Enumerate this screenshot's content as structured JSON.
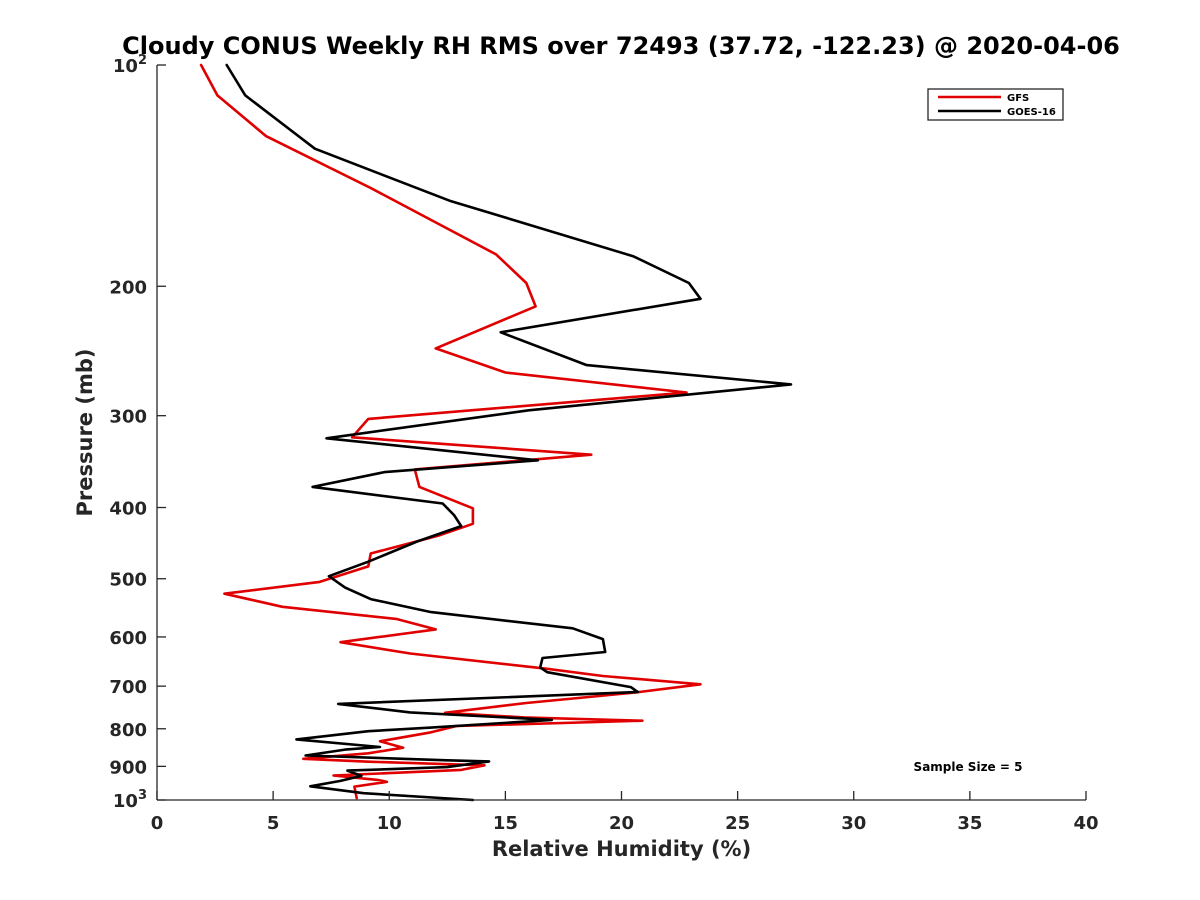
{
  "chart_data": {
    "type": "line",
    "title": "Cloudy CONUS Weekly RH RMS over 72493 (37.72, -122.23) @ 2020-04-06",
    "xlabel": "Relative Humidity (%)",
    "ylabel": "Pressure (mb)",
    "xlim": [
      0,
      40
    ],
    "ylim": [
      100,
      1000
    ],
    "yscale": "log",
    "y_reversed": true,
    "grid": false,
    "x_ticks": [
      "0",
      "5",
      "10",
      "15",
      "20",
      "25",
      "30",
      "35",
      "40"
    ],
    "y_ticks": [
      {
        "value": 100,
        "base": "10",
        "exp": "2"
      },
      {
        "value": 200,
        "label": "200"
      },
      {
        "value": 300,
        "label": "300"
      },
      {
        "value": 400,
        "label": "400"
      },
      {
        "value": 500,
        "label": "500"
      },
      {
        "value": 600,
        "label": "600"
      },
      {
        "value": 700,
        "label": "700"
      },
      {
        "value": 800,
        "label": "800"
      },
      {
        "value": 900,
        "label": "900"
      },
      {
        "value": 1000,
        "base": "10",
        "exp": "3"
      }
    ],
    "legend_position": "top-right",
    "annotation": "Sample Size = 5",
    "series": [
      {
        "name": "GFS",
        "color": "#e00000",
        "x": [
          1.9,
          2.6,
          4.7,
          9.2,
          14.6,
          15.9,
          16.3,
          12.0,
          15.0,
          22.8,
          9.1,
          8.4,
          18.7,
          11.1,
          11.3,
          13.6,
          13.6,
          12.1,
          9.2,
          9.1,
          7.0,
          2.9,
          5.4,
          10.3,
          12.0,
          7.9,
          10.9,
          16.8,
          19.2,
          23.4,
          20.6,
          15.9,
          12.4,
          15.8,
          20.9,
          12.9,
          11.8,
          9.6,
          10.6,
          9.1,
          6.3,
          9.1,
          14.1,
          13.1,
          7.6,
          9.5,
          9.9,
          8.5,
          8.6
        ],
        "y": [
          100,
          110,
          125,
          147,
          181,
          198,
          213,
          243,
          262,
          279,
          303,
          321,
          339,
          355,
          375,
          401,
          421,
          437,
          462,
          481,
          505,
          524,
          546,
          567,
          586,
          610,
          632,
          663,
          678,
          696,
          714,
          738,
          761,
          772,
          780,
          793,
          809,
          832,
          849,
          864,
          879,
          887,
          897,
          910,
          926,
          939,
          945,
          959,
          994
        ]
      },
      {
        "name": "GOES-16",
        "color": "#000000",
        "x": [
          3.0,
          3.8,
          6.8,
          12.6,
          20.5,
          22.9,
          23.4,
          14.8,
          18.5,
          27.3,
          16.0,
          7.3,
          16.4,
          9.8,
          6.7,
          12.3,
          12.8,
          13.1,
          11.2,
          9.1,
          7.4,
          8.1,
          9.2,
          11.8,
          17.9,
          19.2,
          19.3,
          16.6,
          16.5,
          16.8,
          20.4,
          20.7,
          7.8,
          10.9,
          17.0,
          11.8,
          9.1,
          6.0,
          9.6,
          8.1,
          6.4,
          12.5,
          14.3,
          12.5,
          8.2,
          8.8,
          7.9,
          6.6,
          8.9,
          13.6
        ],
        "y": [
          100,
          110,
          130,
          153,
          182,
          198,
          208,
          231,
          256,
          272,
          295,
          322,
          345,
          358,
          375,
          395,
          410,
          424,
          445,
          474,
          496,
          514,
          533,
          555,
          584,
          604,
          629,
          641,
          660,
          670,
          702,
          713,
          740,
          760,
          778,
          797,
          806,
          827,
          847,
          854,
          870,
          883,
          886,
          902,
          912,
          927,
          942,
          958,
          979,
          1000
        ]
      }
    ]
  }
}
